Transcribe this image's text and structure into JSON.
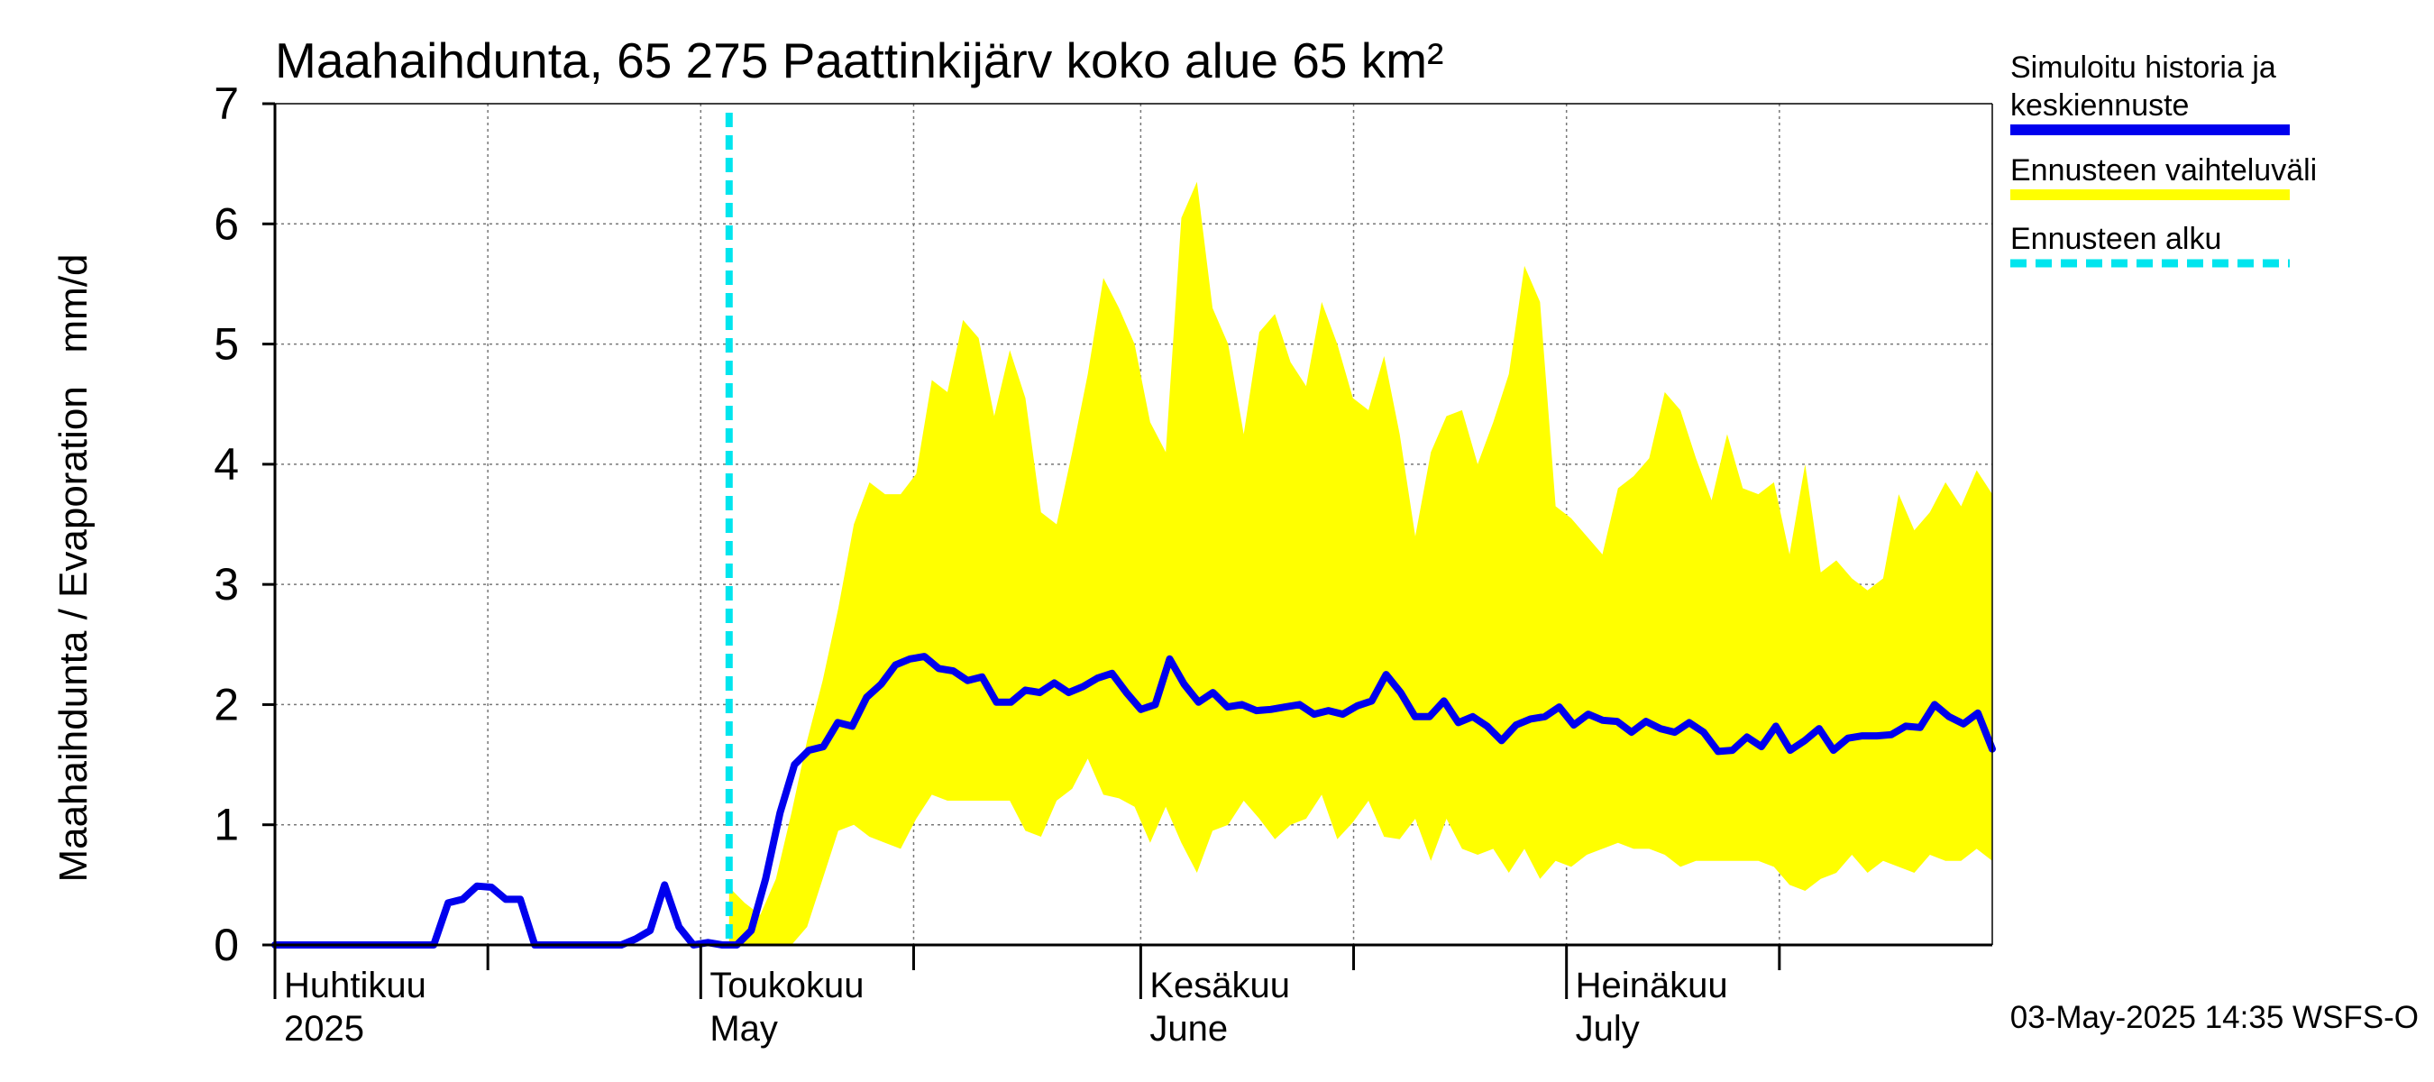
{
  "chart_data": {
    "type": "line",
    "title": "Maahaihdunta, 65 275 Paattinkijärv koko alue 65 km²",
    "ylabel": "Maahaihdunta / Evaporation   mm/d",
    "ylim": [
      0,
      7
    ],
    "yticks": [
      "0",
      "1",
      "2",
      "3",
      "4",
      "5",
      "6",
      "7"
    ],
    "grid": true,
    "legend_position": "right",
    "x_start": "2025-04-01",
    "x_end": "2025-07-31",
    "forecast_start": "2025-05-03",
    "month_labels": [
      {
        "fi": "Huhtikuu",
        "en": "2025",
        "date": "2025-04-01"
      },
      {
        "fi": "Toukokuu",
        "en": "May",
        "date": "2025-05-01"
      },
      {
        "fi": "Kesäkuu",
        "en": "June",
        "date": "2025-06-01"
      },
      {
        "fi": "Heinäkuu",
        "en": "July",
        "date": "2025-07-01"
      }
    ],
    "series": [
      {
        "name": "Simuloitu historia ja keskiennuste",
        "color": "#0000ee",
        "values": [
          0,
          0,
          0,
          0,
          0,
          0,
          0,
          0,
          0,
          0,
          0,
          0,
          0.35,
          0.38,
          0.49,
          0.48,
          0.38,
          0.38,
          0,
          0,
          0,
          0,
          0,
          0,
          0,
          0.05,
          0.12,
          0.5,
          0.15,
          0,
          0.02,
          0,
          0,
          0.12,
          0.55,
          1.1,
          1.5,
          1.62,
          1.65,
          1.85,
          1.82,
          2.06,
          2.17,
          2.33,
          2.38,
          2.4,
          2.3,
          2.28,
          2.2,
          2.23,
          2.02,
          2.02,
          2.12,
          2.1,
          2.18,
          2.1,
          2.15,
          2.22,
          2.26,
          2.1,
          1.96,
          2,
          2.38,
          2.17,
          2.02,
          2.1,
          1.98,
          2,
          1.95,
          1.96,
          1.98,
          2,
          1.92,
          1.95,
          1.92,
          1.99,
          2.03,
          2.25,
          2.1,
          1.9,
          1.9,
          2.03,
          1.85,
          1.9,
          1.82,
          1.7,
          1.83,
          1.88,
          1.9,
          1.98,
          1.83,
          1.92,
          1.87,
          1.86,
          1.77,
          1.86,
          1.8,
          1.77,
          1.85,
          1.77,
          1.61,
          1.62,
          1.73,
          1.65,
          1.82,
          1.62,
          1.7,
          1.8,
          1.62,
          1.72,
          1.74,
          1.74,
          1.75,
          1.82,
          1.81,
          2,
          1.9,
          1.84,
          1.93,
          1.63
        ]
      },
      {
        "name": "Ennusteen vaihteluväli",
        "color": "#ffff00",
        "upper": [
          0.48,
          0.35,
          0.25,
          0.55,
          1.1,
          1.7,
          2.2,
          2.8,
          3.5,
          3.85,
          3.75,
          3.75,
          3.92,
          4.7,
          4.6,
          5.2,
          5.05,
          4.4,
          4.95,
          4.55,
          3.6,
          3.5,
          4.1,
          4.75,
          5.55,
          5.3,
          5,
          4.35,
          4.1,
          6.05,
          6.35,
          5.3,
          5,
          4.25,
          5.1,
          5.25,
          4.85,
          4.65,
          5.35,
          5,
          4.55,
          4.45,
          4.9,
          4.25,
          3.4,
          4.1,
          4.4,
          4.45,
          4,
          4.35,
          4.75,
          5.65,
          5.35,
          3.65,
          3.55,
          3.4,
          3.25,
          3.8,
          3.9,
          4.05,
          4.6,
          4.45,
          4.05,
          3.7,
          4.25,
          3.8,
          3.75,
          3.85,
          3.25,
          4,
          3.1,
          3.2,
          3.05,
          2.95,
          3.05,
          3.75,
          3.45,
          3.6,
          3.85,
          3.65,
          3.95,
          3.75
        ],
        "lower": [
          0,
          0,
          0,
          0,
          0,
          0.15,
          0.55,
          0.95,
          1,
          0.9,
          0.85,
          0.8,
          1.05,
          1.25,
          1.2,
          1.2,
          1.2,
          1.2,
          1.2,
          0.95,
          0.9,
          1.2,
          1.3,
          1.55,
          1.25,
          1.22,
          1.15,
          0.85,
          1.15,
          0.85,
          0.6,
          0.95,
          1,
          1.2,
          1.05,
          0.88,
          1,
          1.05,
          1.25,
          0.88,
          1.02,
          1.2,
          0.9,
          0.88,
          1.05,
          0.7,
          1.05,
          0.8,
          0.75,
          0.8,
          0.6,
          0.8,
          0.55,
          0.7,
          0.65,
          0.75,
          0.8,
          0.85,
          0.8,
          0.8,
          0.75,
          0.65,
          0.7,
          0.7,
          0.7,
          0.7,
          0.7,
          0.65,
          0.5,
          0.45,
          0.55,
          0.6,
          0.75,
          0.6,
          0.7,
          0.65,
          0.6,
          0.75,
          0.7,
          0.7,
          0.8,
          0.7
        ]
      },
      {
        "name": "Ennusteen alku",
        "color": "#00e5ee"
      }
    ]
  },
  "legend": [
    {
      "line1": "Simuloitu historia ja",
      "line2": "keskiennuste",
      "color": "#0000ee",
      "style": "solid"
    },
    {
      "line1": "Ennusteen vaihteluväli",
      "line2": "",
      "color": "#ffff00",
      "style": "solid"
    },
    {
      "line1": "Ennusteen alku",
      "line2": "",
      "color": "#00e5ee",
      "style": "dashed"
    }
  ],
  "footer": "03-May-2025 14:35 WSFS-O"
}
